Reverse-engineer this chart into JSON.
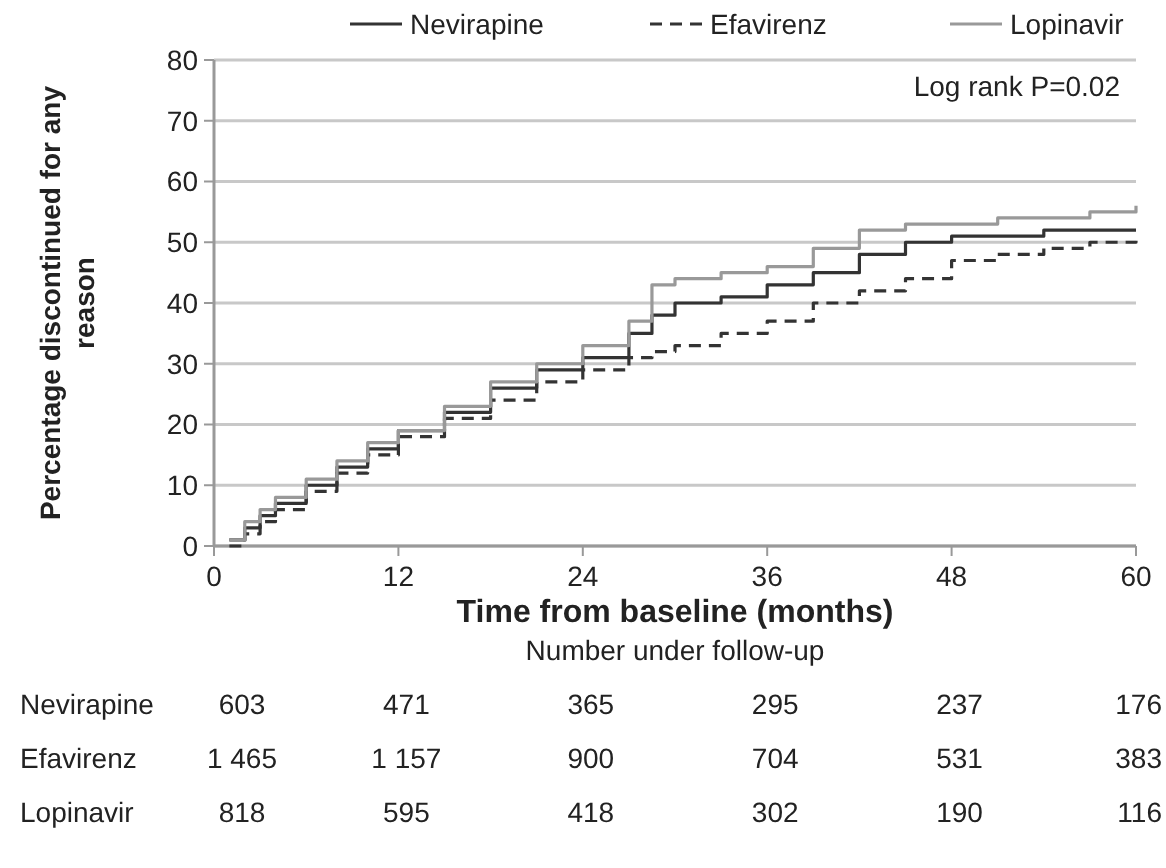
{
  "chart_data": {
    "type": "step",
    "xlabel": "Time from baseline (months)",
    "ylabel": "Percentage discontinued for any reason",
    "xlim": [
      0,
      60
    ],
    "xticks": [
      0,
      12,
      24,
      36,
      48,
      60
    ],
    "ylim": [
      0,
      80
    ],
    "yticks": [
      0,
      10,
      20,
      30,
      40,
      50,
      60,
      70,
      80
    ],
    "grid": "y",
    "legend": "top",
    "series": [
      {
        "name": "Nevirapine",
        "color": "#333333",
        "line_style": "solid",
        "x": [
          1,
          2,
          3,
          4,
          6,
          8,
          10,
          12,
          15,
          18,
          21,
          24,
          27,
          28.5,
          30,
          33,
          36,
          39,
          42,
          45,
          48,
          51,
          54,
          57,
          60
        ],
        "values": [
          1,
          3,
          5,
          7,
          10,
          13,
          16,
          19,
          22,
          26,
          29,
          31,
          35,
          38,
          40,
          41,
          43,
          45,
          48,
          50,
          51,
          51,
          52,
          52,
          52
        ]
      },
      {
        "name": "Efavirenz",
        "color": "#333333",
        "line_style": "dashed",
        "x": [
          1,
          2,
          3,
          4,
          6,
          8,
          10,
          12,
          15,
          18,
          21,
          24,
          27,
          28.5,
          30,
          33,
          36,
          39,
          42,
          45,
          48,
          51,
          54,
          57,
          60
        ],
        "values": [
          0,
          2,
          4,
          6,
          9,
          12,
          15,
          18,
          21,
          24,
          27,
          29,
          31,
          32,
          33,
          35,
          37,
          40,
          42,
          44,
          47,
          48,
          49,
          50,
          51
        ]
      },
      {
        "name": "Lopinavir",
        "color": "#999999",
        "line_style": "solid",
        "x": [
          1,
          2,
          3,
          4,
          6,
          8,
          10,
          12,
          15,
          18,
          21,
          24,
          27,
          28.5,
          30,
          33,
          36,
          39,
          42,
          45,
          48,
          51,
          54,
          57,
          60
        ],
        "values": [
          1,
          4,
          6,
          8,
          11,
          14,
          17,
          19,
          23,
          27,
          30,
          33,
          37,
          43,
          44,
          45,
          46,
          49,
          52,
          53,
          53,
          54,
          54,
          55,
          56
        ]
      }
    ],
    "annotations": [
      "Log rank P=0.02",
      "Number under follow-up",
      "Nevirapine",
      "603",
      "471",
      "365",
      "295",
      "237",
      "176",
      "Efavirenz",
      "1 465",
      "1 157",
      "900",
      "704",
      "531",
      "383",
      "Lopinavir",
      "818",
      "595",
      "418",
      "302",
      "190",
      "116"
    ]
  }
}
